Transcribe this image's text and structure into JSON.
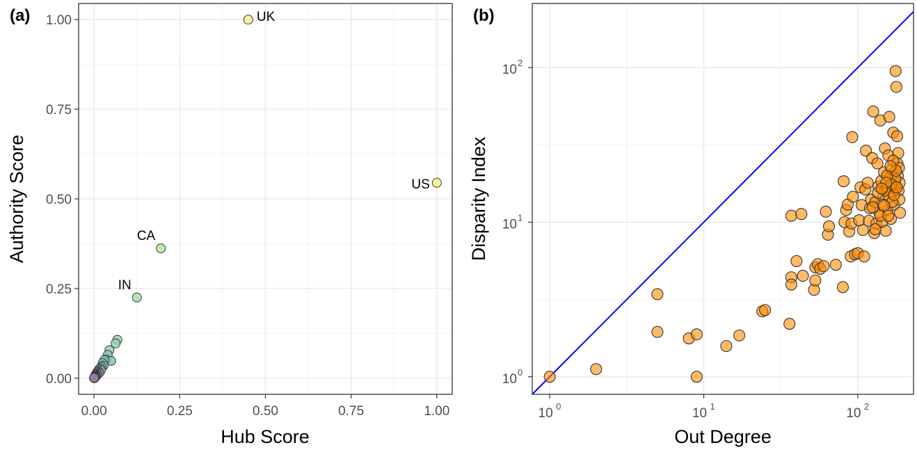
{
  "chart_data": [
    {
      "type": "scatter",
      "panel_label": "(a)",
      "xlabel": "Hub Score",
      "ylabel": "Authority Score",
      "xlim": [
        -0.045,
        1.045
      ],
      "ylim": [
        -0.045,
        1.045
      ],
      "x_ticks": [
        "0.00",
        "0.25",
        "0.50",
        "0.75",
        "1.00"
      ],
      "y_ticks": [
        "0.00",
        "0.25",
        "0.50",
        "0.75",
        "1.00"
      ],
      "x_tick_values": [
        0,
        0.25,
        0.5,
        0.75,
        1
      ],
      "y_tick_values": [
        0,
        0.25,
        0.5,
        0.75,
        1
      ],
      "grid": true,
      "color_encoding": "viridis-like gradient, dark blue (low) to yellow (high)",
      "labeled_points": [
        {
          "label": "UK",
          "x": 0.45,
          "y": 1.0
        },
        {
          "label": "US",
          "x": 1.0,
          "y": 0.545
        },
        {
          "label": "CA",
          "x": 0.195,
          "y": 0.362
        },
        {
          "label": "IN",
          "x": 0.125,
          "y": 0.225
        }
      ],
      "points": [
        {
          "x": 0.45,
          "y": 1.0,
          "c": 0.97
        },
        {
          "x": 1.0,
          "y": 0.545,
          "c": 0.97
        },
        {
          "x": 0.195,
          "y": 0.362,
          "c": 0.8
        },
        {
          "x": 0.125,
          "y": 0.225,
          "c": 0.75
        },
        {
          "x": 0.068,
          "y": 0.107,
          "c": 0.65
        },
        {
          "x": 0.063,
          "y": 0.097,
          "c": 0.62
        },
        {
          "x": 0.045,
          "y": 0.078,
          "c": 0.58
        },
        {
          "x": 0.04,
          "y": 0.065,
          "c": 0.55
        },
        {
          "x": 0.035,
          "y": 0.052,
          "c": 0.5
        },
        {
          "x": 0.05,
          "y": 0.048,
          "c": 0.5
        },
        {
          "x": 0.03,
          "y": 0.05,
          "c": 0.5
        },
        {
          "x": 0.025,
          "y": 0.042,
          "c": 0.47
        },
        {
          "x": 0.028,
          "y": 0.035,
          "c": 0.45
        },
        {
          "x": 0.022,
          "y": 0.032,
          "c": 0.43
        },
        {
          "x": 0.018,
          "y": 0.028,
          "c": 0.4
        },
        {
          "x": 0.015,
          "y": 0.025,
          "c": 0.38
        },
        {
          "x": 0.02,
          "y": 0.022,
          "c": 0.37
        },
        {
          "x": 0.012,
          "y": 0.02,
          "c": 0.35
        },
        {
          "x": 0.01,
          "y": 0.018,
          "c": 0.33
        },
        {
          "x": 0.015,
          "y": 0.015,
          "c": 0.31
        },
        {
          "x": 0.008,
          "y": 0.014,
          "c": 0.29
        },
        {
          "x": 0.006,
          "y": 0.012,
          "c": 0.27
        },
        {
          "x": 0.01,
          "y": 0.01,
          "c": 0.25
        },
        {
          "x": 0.005,
          "y": 0.009,
          "c": 0.23
        },
        {
          "x": 0.004,
          "y": 0.008,
          "c": 0.21
        },
        {
          "x": 0.006,
          "y": 0.006,
          "c": 0.19
        },
        {
          "x": 0.003,
          "y": 0.005,
          "c": 0.17
        },
        {
          "x": 0.002,
          "y": 0.004,
          "c": 0.15
        },
        {
          "x": 0.003,
          "y": 0.003,
          "c": 0.13
        },
        {
          "x": 0.001,
          "y": 0.002,
          "c": 0.11
        },
        {
          "x": 0.002,
          "y": 0.001,
          "c": 0.09
        },
        {
          "x": 0.001,
          "y": 0.001,
          "c": 0.07
        },
        {
          "x": 0.0,
          "y": 0.0,
          "c": 0.05
        },
        {
          "x": 0.001,
          "y": 0.0,
          "c": 0.04
        },
        {
          "x": 0.0,
          "y": 0.001,
          "c": 0.03
        }
      ]
    },
    {
      "type": "scatter",
      "panel_label": "(b)",
      "xlabel": "Out Degree",
      "ylabel": "Disparity Index",
      "x_scale": "log10",
      "y_scale": "log10",
      "xlim": [
        0.77,
        230
      ],
      "ylim": [
        0.77,
        260
      ],
      "x_tick_values": [
        1,
        10,
        100
      ],
      "y_tick_values": [
        1,
        10,
        100
      ],
      "x_tick_labels": [
        {
          "base": "10",
          "exp": "0"
        },
        {
          "base": "10",
          "exp": "1"
        },
        {
          "base": "10",
          "exp": "2"
        }
      ],
      "y_tick_labels": [
        {
          "base": "10",
          "exp": "0"
        },
        {
          "base": "10",
          "exp": "1"
        },
        {
          "base": "10",
          "exp": "2"
        }
      ],
      "grid": true,
      "point_color": "#ff8c00",
      "reference_line": {
        "type": "y = x",
        "color": "#0000ff"
      },
      "points": [
        [
          1,
          1.0
        ],
        [
          2,
          1.12
        ],
        [
          5,
          3.42
        ],
        [
          5,
          1.95
        ],
        [
          8,
          1.77
        ],
        [
          9,
          1.88
        ],
        [
          9,
          1.0
        ],
        [
          14,
          1.58
        ],
        [
          17,
          1.85
        ],
        [
          24,
          2.65
        ],
        [
          25,
          2.7
        ],
        [
          36,
          2.2
        ],
        [
          37,
          11.0
        ],
        [
          37,
          4.4
        ],
        [
          37,
          3.95
        ],
        [
          40,
          5.6
        ],
        [
          43,
          11.3
        ],
        [
          44,
          4.5
        ],
        [
          52,
          3.65
        ],
        [
          53,
          5.1
        ],
        [
          53,
          4.2
        ],
        [
          55,
          5.35
        ],
        [
          57,
          5.0
        ],
        [
          60,
          5.2
        ],
        [
          62,
          11.7
        ],
        [
          64,
          8.3
        ],
        [
          65,
          9.4
        ],
        [
          72,
          5.3
        ],
        [
          80,
          3.8
        ],
        [
          81,
          18.4
        ],
        [
          82,
          10.0
        ],
        [
          84,
          12.0
        ],
        [
          86,
          13.0
        ],
        [
          88,
          8.7
        ],
        [
          90,
          6.0
        ],
        [
          91,
          9.8
        ],
        [
          92,
          35.5
        ],
        [
          93,
          14.6
        ],
        [
          96,
          6.2
        ],
        [
          100,
          6.3
        ],
        [
          102,
          10.3
        ],
        [
          104,
          16.8
        ],
        [
          106,
          12.9
        ],
        [
          108,
          8.9
        ],
        [
          110,
          6.0
        ],
        [
          112,
          16.3
        ],
        [
          113,
          29.0
        ],
        [
          116,
          18.0
        ],
        [
          118,
          10.2
        ],
        [
          120,
          12.3
        ],
        [
          122,
          14.0
        ],
        [
          124,
          26.0
        ],
        [
          126,
          52.0
        ],
        [
          128,
          8.5
        ],
        [
          130,
          13.5
        ],
        [
          132,
          9.8
        ],
        [
          134,
          24.0
        ],
        [
          136,
          17.0
        ],
        [
          138,
          11.5
        ],
        [
          140,
          45.5
        ],
        [
          142,
          18.5
        ],
        [
          144,
          10.0
        ],
        [
          146,
          14.6
        ],
        [
          148,
          21.0
        ],
        [
          150,
          30.0
        ],
        [
          152,
          8.8
        ],
        [
          154,
          16.3
        ],
        [
          156,
          12.0
        ],
        [
          158,
          27.0
        ],
        [
          160,
          48.0
        ],
        [
          162,
          19.5
        ],
        [
          164,
          10.5
        ],
        [
          166,
          22.0
        ],
        [
          168,
          15.5
        ],
        [
          170,
          38.0
        ],
        [
          172,
          13.0
        ],
        [
          174,
          17.0
        ],
        [
          176,
          95.0
        ],
        [
          178,
          75.0
        ],
        [
          180,
          36.0
        ],
        [
          181,
          24.0
        ],
        [
          182,
          20.0
        ],
        [
          183,
          28.0
        ],
        [
          184,
          16.0
        ],
        [
          185,
          22.5
        ],
        [
          186,
          14.0
        ],
        [
          187,
          18.0
        ],
        [
          188,
          11.5
        ],
        [
          175,
          19.0
        ],
        [
          170,
          25.0
        ],
        [
          165,
          17.5
        ],
        [
          160,
          14.5
        ],
        [
          155,
          20.0
        ],
        [
          150,
          16.0
        ],
        [
          145,
          13.0
        ],
        [
          140,
          11.0
        ],
        [
          135,
          15.5
        ],
        [
          130,
          9.0
        ],
        [
          125,
          12.5
        ],
        [
          158,
          11.0
        ],
        [
          167,
          13.5
        ],
        [
          172,
          15.0
        ],
        [
          177,
          21.5
        ],
        [
          179,
          16.8
        ],
        [
          163,
          23.0
        ],
        [
          153,
          18.0
        ],
        [
          148,
          12.8
        ],
        [
          143,
          16.5
        ]
      ]
    }
  ]
}
